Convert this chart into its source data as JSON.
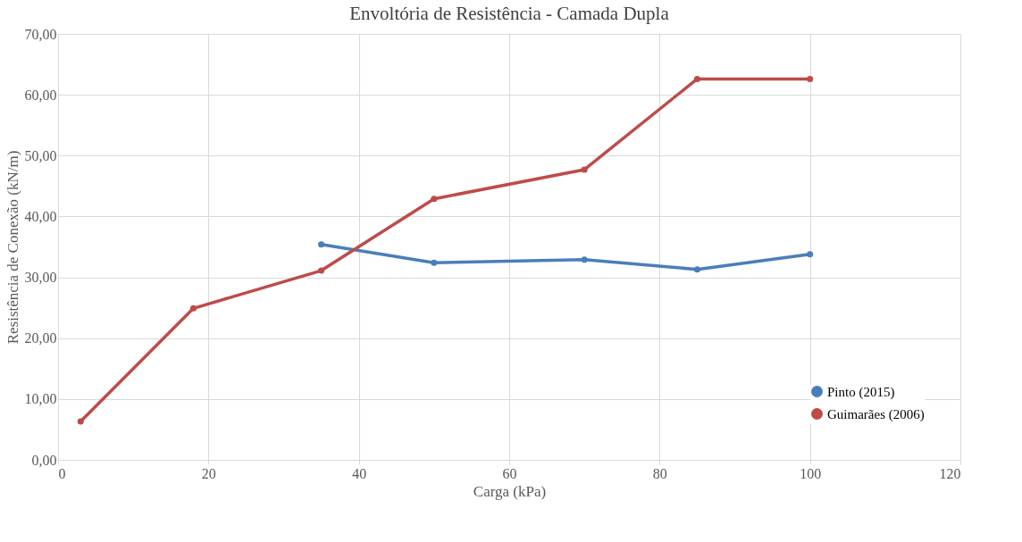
{
  "chart_data": {
    "type": "line",
    "title": "Envoltória de Resistência - Camada Dupla",
    "xlabel": "Carga (kPa)",
    "ylabel": "Resistência de Conexão (kN/m)",
    "series": [
      {
        "name": "Pinto (2015)",
        "color": "#4a7ebb",
        "x": [
          35,
          50,
          70,
          85,
          100
        ],
        "values": [
          35.4,
          32.4,
          32.9,
          31.3,
          33.8
        ]
      },
      {
        "name": "Guimarães (2006)",
        "color": "#be4b48",
        "x": [
          3,
          18,
          35,
          50,
          70,
          85,
          100
        ],
        "values": [
          6.3,
          24.9,
          31.1,
          42.9,
          47.7,
          62.6,
          62.6
        ]
      }
    ],
    "xlim": [
      0,
      120
    ],
    "xticks": [
      0,
      20,
      40,
      60,
      80,
      100,
      120
    ],
    "ylim": [
      0,
      70
    ],
    "yticks": [
      {
        "value": 0,
        "label": "0,00"
      },
      {
        "value": 10,
        "label": "10,00"
      },
      {
        "value": 20,
        "label": "20,00"
      },
      {
        "value": 30,
        "label": "30,00"
      },
      {
        "value": 40,
        "label": "40,00"
      },
      {
        "value": 50,
        "label": "50,00"
      },
      {
        "value": 60,
        "label": "60,00"
      },
      {
        "value": 70,
        "label": "70,00"
      }
    ],
    "grid": true,
    "legend": "bottom right",
    "marker": "circle",
    "line_style": "solid"
  }
}
